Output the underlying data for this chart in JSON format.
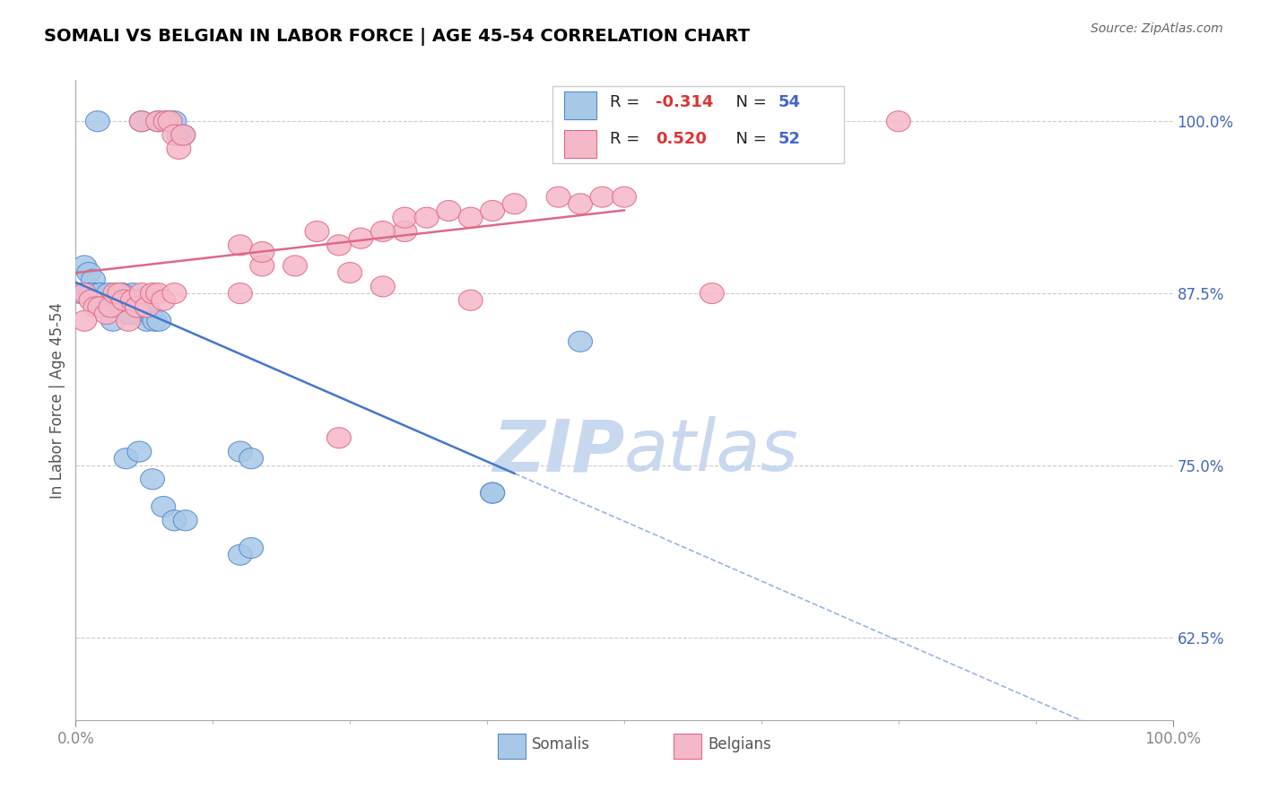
{
  "title": "SOMALI VS BELGIAN IN LABOR FORCE | AGE 45-54 CORRELATION CHART",
  "source": "Source: ZipAtlas.com",
  "ylabel": "In Labor Force | Age 45-54",
  "ytick_labels": [
    "62.5%",
    "75.0%",
    "87.5%",
    "100.0%"
  ],
  "ytick_values": [
    0.625,
    0.75,
    0.875,
    1.0
  ],
  "xlim": [
    0.0,
    1.0
  ],
  "ylim": [
    0.565,
    1.03
  ],
  "somali_R": -0.314,
  "somali_N": 54,
  "belgian_R": 0.52,
  "belgian_N": 52,
  "somali_color": "#a8c8e8",
  "belgian_color": "#f5b8c8",
  "somali_edge_color": "#5588cc",
  "belgian_edge_color": "#e06888",
  "somali_line_color": "#4477cc",
  "belgian_line_color": "#e06888",
  "watermark_color": "#c8d8ee",
  "somali_x": [
    0.02,
    0.06,
    0.075,
    0.082,
    0.086,
    0.09,
    0.094,
    0.098,
    0.008,
    0.012,
    0.016,
    0.018,
    0.022,
    0.026,
    0.028,
    0.032,
    0.036,
    0.038,
    0.042,
    0.044,
    0.048,
    0.052,
    0.055,
    0.058,
    0.062,
    0.065,
    0.068,
    0.072,
    0.076,
    0.005,
    0.01,
    0.014,
    0.018,
    0.022,
    0.026,
    0.03,
    0.034,
    0.038,
    0.042,
    0.046,
    0.05,
    0.15,
    0.16,
    0.38,
    0.15,
    0.16,
    0.38,
    0.46,
    0.046,
    0.058,
    0.07,
    0.08,
    0.09,
    0.1
  ],
  "somali_y": [
    1.0,
    1.0,
    1.0,
    1.0,
    1.0,
    1.0,
    0.99,
    0.99,
    0.895,
    0.89,
    0.885,
    0.875,
    0.875,
    0.87,
    0.87,
    0.87,
    0.865,
    0.865,
    0.875,
    0.865,
    0.86,
    0.875,
    0.87,
    0.86,
    0.87,
    0.855,
    0.86,
    0.855,
    0.855,
    0.875,
    0.875,
    0.875,
    0.87,
    0.875,
    0.865,
    0.875,
    0.855,
    0.87,
    0.875,
    0.865,
    0.86,
    0.76,
    0.755,
    0.73,
    0.685,
    0.69,
    0.73,
    0.84,
    0.755,
    0.76,
    0.74,
    0.72,
    0.71,
    0.71
  ],
  "belgian_x": [
    0.06,
    0.075,
    0.082,
    0.086,
    0.09,
    0.094,
    0.098,
    0.008,
    0.014,
    0.018,
    0.022,
    0.028,
    0.032,
    0.036,
    0.04,
    0.044,
    0.048,
    0.052,
    0.056,
    0.06,
    0.065,
    0.07,
    0.075,
    0.08,
    0.09,
    0.15,
    0.17,
    0.25,
    0.28,
    0.3,
    0.15,
    0.17,
    0.2,
    0.22,
    0.24,
    0.26,
    0.28,
    0.75,
    0.3,
    0.32,
    0.34,
    0.36,
    0.38,
    0.4,
    0.44,
    0.46,
    0.48,
    0.5,
    0.008,
    0.36,
    0.58,
    0.24
  ],
  "belgian_y": [
    1.0,
    1.0,
    1.0,
    1.0,
    0.99,
    0.98,
    0.99,
    0.875,
    0.87,
    0.865,
    0.865,
    0.86,
    0.865,
    0.875,
    0.875,
    0.87,
    0.855,
    0.87,
    0.865,
    0.875,
    0.865,
    0.875,
    0.875,
    0.87,
    0.875,
    0.875,
    0.895,
    0.89,
    0.88,
    0.92,
    0.91,
    0.905,
    0.895,
    0.92,
    0.91,
    0.915,
    0.92,
    1.0,
    0.93,
    0.93,
    0.935,
    0.93,
    0.935,
    0.94,
    0.945,
    0.94,
    0.945,
    0.945,
    0.855,
    0.87,
    0.875,
    0.77
  ]
}
